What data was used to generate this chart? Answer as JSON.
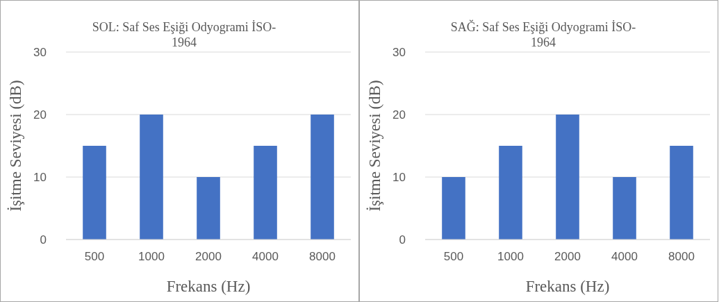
{
  "chart_data": [
    {
      "type": "bar",
      "title": "SOL: Saf Ses Eşiği Odyogrami İSO-1964",
      "xlabel": "Frekans (Hz)",
      "ylabel": "İşitme Seviyesi (dB)",
      "categories": [
        "500",
        "1000",
        "2000",
        "4000",
        "8000"
      ],
      "values": [
        15,
        20,
        10,
        15,
        20
      ],
      "color": "#4472c4",
      "ylim": [
        0,
        30
      ],
      "yticks": [
        0,
        10,
        20,
        30
      ],
      "grid": "y"
    },
    {
      "type": "bar",
      "title": "SAĞ: Saf Ses Eşiği Odyogrami İSO-1964",
      "xlabel": "Frekans (Hz)",
      "ylabel": "İşitme Seviyesi (dB)",
      "categories": [
        "500",
        "1000",
        "2000",
        "4000",
        "8000"
      ],
      "values": [
        10,
        15,
        20,
        10,
        15
      ],
      "color": "#4472c4",
      "ylim": [
        0,
        30
      ],
      "yticks": [
        0,
        10,
        20,
        30
      ],
      "grid": "y"
    }
  ]
}
